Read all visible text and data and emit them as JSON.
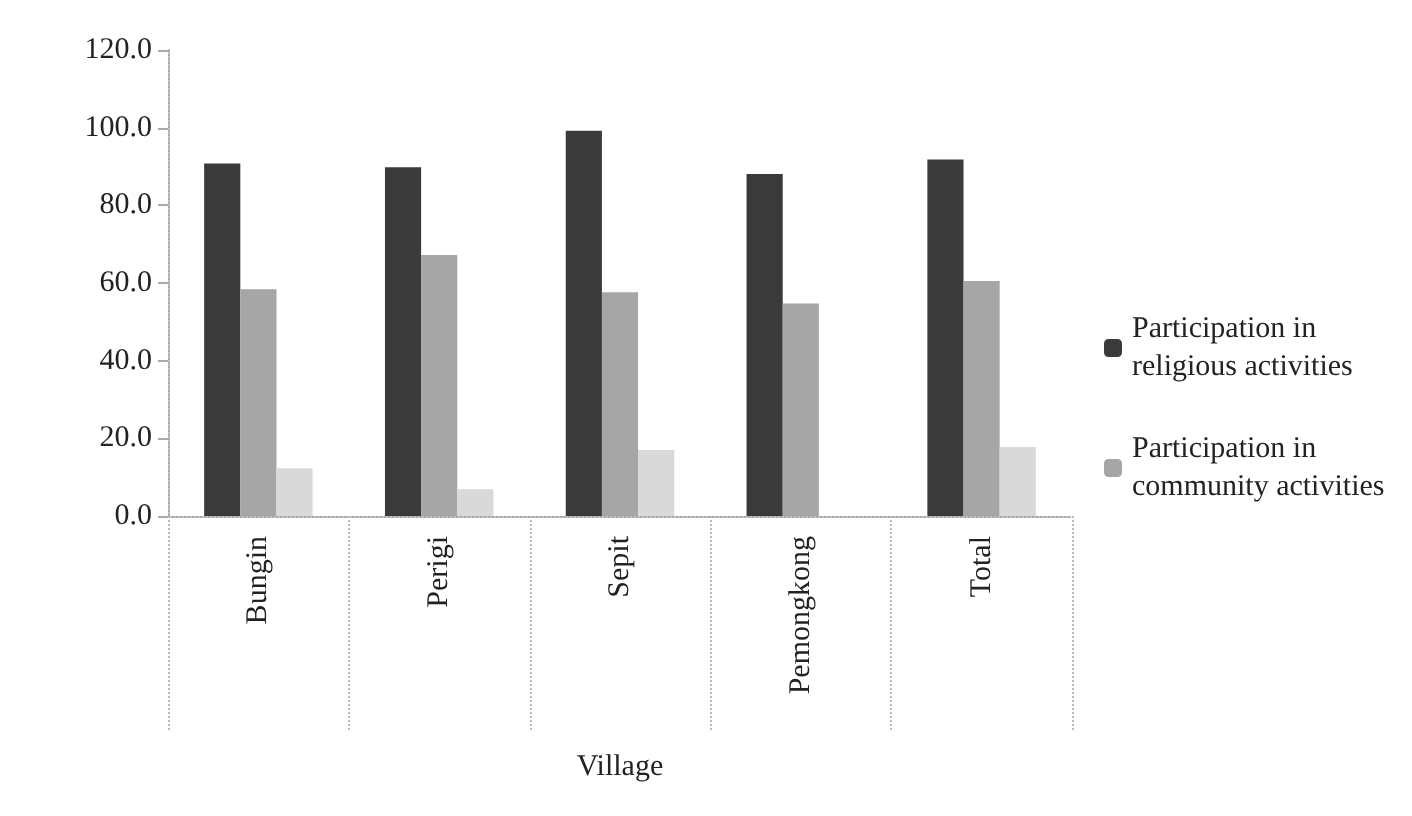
{
  "chart_data": {
    "type": "bar",
    "xlabel": "Village",
    "categories": [
      "Bungin",
      "Perigi",
      "Sepit",
      "Pemongkong",
      "Total"
    ],
    "series": [
      {
        "name": "Participation in religious activities",
        "color": "#3a3a3a",
        "values": [
          90.8,
          89.8,
          99.2,
          88.1,
          91.8
        ]
      },
      {
        "name": "Participation in community activities",
        "color": "#a6a6a6",
        "values": [
          58.4,
          67.2,
          57.6,
          54.7,
          60.5
        ]
      },
      {
        "color": "#d9d9d9",
        "values": [
          12.3,
          6.9,
          17.0,
          0,
          17.8
        ]
      }
    ],
    "ylim": [
      0,
      120
    ],
    "yticks": [
      {
        "value": 0,
        "label": "0.0"
      },
      {
        "value": 20,
        "label": "20.0"
      },
      {
        "value": 40,
        "label": "40.0"
      },
      {
        "value": 60,
        "label": "60.0"
      },
      {
        "value": 80,
        "label": "80.0"
      },
      {
        "value": 100,
        "label": "100.0"
      },
      {
        "value": 120,
        "label": "120.0"
      }
    ],
    "grid": false,
    "legend": "right"
  }
}
